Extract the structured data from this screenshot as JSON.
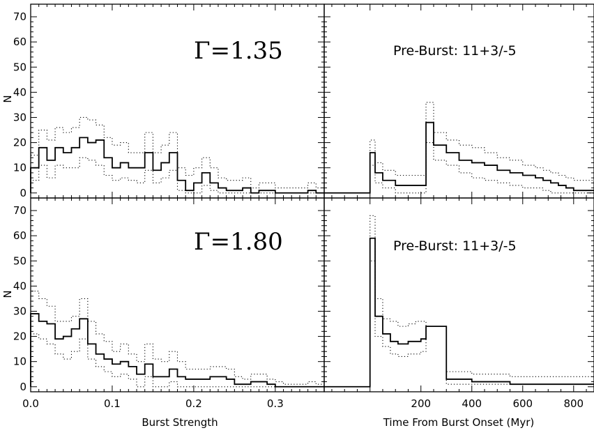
{
  "chart_data": [
    {
      "panel": "top-left",
      "type": "line",
      "style": "histogram-step",
      "annotation": "Γ=1.35",
      "ylabel": "N",
      "xlabel": "",
      "xlim": [
        0.0,
        0.36
      ],
      "ylim": [
        -2,
        75
      ],
      "x_ticks": [],
      "y_ticks": [
        0,
        10,
        20,
        30,
        40,
        50,
        60,
        70
      ],
      "bin_width": 0.01,
      "series": [
        {
          "style": "solid",
          "values": [
            10,
            18,
            13,
            18,
            16,
            18,
            22,
            20,
            21,
            14,
            10,
            12,
            10,
            10,
            16,
            9,
            12,
            16,
            5,
            1,
            4,
            8,
            4,
            2,
            1,
            1,
            2,
            0,
            1,
            1,
            0,
            0,
            0,
            0,
            1,
            0
          ]
        },
        {
          "style": "dotted",
          "values": [
            15,
            25,
            21,
            26,
            24,
            26,
            30,
            29,
            27,
            22,
            19,
            20,
            16,
            16,
            24,
            16,
            19,
            24,
            10,
            7,
            10,
            14,
            10,
            6,
            5,
            5,
            6,
            2,
            4,
            4,
            2,
            2,
            2,
            2,
            4,
            2
          ]
        },
        {
          "style": "dotted",
          "values": [
            5,
            11,
            6,
            11,
            10,
            10,
            14,
            13,
            11,
            7,
            5,
            6,
            5,
            4,
            9,
            4,
            6,
            9,
            1,
            0,
            0,
            3,
            1,
            0,
            0,
            0,
            0,
            0,
            0,
            0,
            0,
            0,
            0,
            0,
            0,
            0
          ]
        }
      ]
    },
    {
      "panel": "top-right",
      "type": "line",
      "style": "histogram-step",
      "annotation": "Pre-Burst: 11+3/-5",
      "ylabel": "",
      "xlabel": "",
      "xlim": [
        -180,
        880
      ],
      "ylim": [
        -2,
        75
      ],
      "x_ticks": [],
      "x_breaks": [
        -180,
        0,
        20,
        50,
        100,
        150,
        200,
        220,
        250,
        300,
        350,
        400,
        450,
        500,
        550,
        600,
        650,
        680,
        710,
        740,
        770,
        800,
        880
      ],
      "series": [
        {
          "style": "solid",
          "values": [
            0,
            16,
            8,
            5,
            3,
            3,
            3,
            28,
            19,
            16,
            13,
            12,
            11,
            9,
            8,
            7,
            6,
            5,
            4,
            3,
            2,
            1,
            1
          ]
        },
        {
          "style": "dotted",
          "values": [
            0,
            21,
            12,
            9,
            7,
            7,
            7,
            36,
            24,
            21,
            19,
            18,
            16,
            14,
            13,
            11,
            10,
            9,
            8,
            7,
            6,
            5,
            5
          ]
        },
        {
          "style": "dotted",
          "values": [
            0,
            11,
            4,
            2,
            0,
            0,
            0,
            20,
            13,
            11,
            8,
            6,
            5,
            4,
            3,
            2,
            2,
            1,
            0,
            0,
            0,
            0,
            0
          ]
        }
      ]
    },
    {
      "panel": "bottom-left",
      "type": "line",
      "style": "histogram-step",
      "annotation": "Γ=1.80",
      "ylabel": "N",
      "xlabel": "Burst Strength",
      "xlim": [
        0.0,
        0.36
      ],
      "ylim": [
        -2,
        75
      ],
      "x_ticks": [
        0.0,
        0.1,
        0.2,
        0.3
      ],
      "x_tick_labels": [
        "0.0",
        "0.1",
        "0.2",
        "0.3"
      ],
      "y_ticks": [
        0,
        10,
        20,
        30,
        40,
        50,
        60,
        70
      ],
      "bin_width": 0.01,
      "series": [
        {
          "style": "solid",
          "values": [
            29,
            26,
            25,
            19,
            20,
            23,
            27,
            17,
            13,
            11,
            9,
            10,
            8,
            5,
            9,
            4,
            4,
            7,
            4,
            3,
            3,
            3,
            4,
            4,
            3,
            1,
            1,
            2,
            2,
            1,
            0,
            0,
            0,
            0,
            0,
            0
          ]
        },
        {
          "style": "dotted",
          "values": [
            38,
            35,
            32,
            26,
            26,
            28,
            35,
            26,
            21,
            18,
            14,
            17,
            13,
            10,
            17,
            11,
            10,
            14,
            10,
            7,
            7,
            7,
            8,
            8,
            7,
            4,
            3,
            5,
            5,
            3,
            2,
            1,
            1,
            1,
            2,
            1
          ]
        },
        {
          "style": "dotted",
          "values": [
            21,
            19,
            17,
            13,
            11,
            14,
            19,
            11,
            8,
            6,
            4,
            5,
            3,
            0,
            4,
            0,
            0,
            2,
            0,
            0,
            0,
            0,
            0,
            0,
            0,
            0,
            0,
            0,
            0,
            0,
            0,
            0,
            0,
            0,
            0,
            0
          ]
        }
      ]
    },
    {
      "panel": "bottom-right",
      "type": "line",
      "style": "histogram-step",
      "annotation": "Pre-Burst: 11+3/-5",
      "ylabel": "",
      "xlabel": "Time From Burst Onset (Myr)",
      "xlim": [
        -180,
        880
      ],
      "ylim": [
        -2,
        75
      ],
      "x_ticks": [
        200,
        400,
        600,
        800
      ],
      "x_tick_labels": [
        "200",
        "400",
        "600",
        "800"
      ],
      "x_breaks": [
        -180,
        0,
        20,
        50,
        80,
        110,
        150,
        180,
        200,
        220,
        300,
        400,
        550,
        880
      ],
      "series": [
        {
          "style": "solid",
          "values": [
            0,
            59,
            28,
            21,
            18,
            17,
            18,
            18,
            19,
            24,
            3,
            2,
            1,
            1
          ]
        },
        {
          "style": "dotted",
          "values": [
            0,
            68,
            35,
            27,
            26,
            24,
            25,
            26,
            26,
            24,
            6,
            5,
            4,
            3
          ]
        },
        {
          "style": "dotted",
          "values": [
            0,
            50,
            20,
            16,
            13,
            12,
            13,
            13,
            14,
            24,
            1,
            1,
            1,
            1
          ]
        }
      ]
    }
  ]
}
